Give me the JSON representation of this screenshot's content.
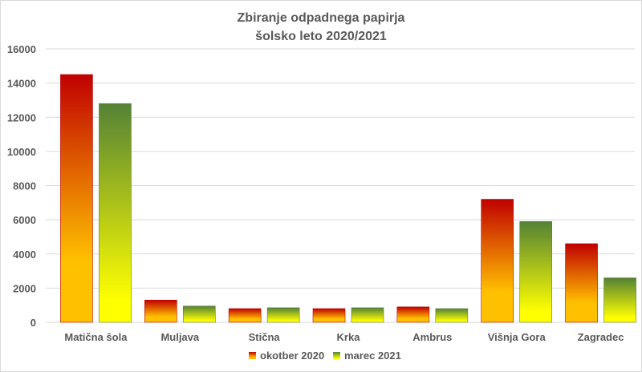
{
  "chart_data": {
    "type": "bar",
    "title": "Zbiranje  odpadnega  papirja",
    "subtitle": "šolsko  leto  2020/2021",
    "xlabel": "",
    "ylabel": "",
    "ylim": [
      0,
      16000
    ],
    "yticks": [
      "0",
      "2000",
      "4000",
      "6000",
      "8000",
      "10000",
      "12000",
      "14000",
      "16000"
    ],
    "grid": true,
    "legend_position": "bottom",
    "categories": [
      "Matična šola",
      "Muljava",
      "Stična",
      "Krka",
      "Ambrus",
      "Višnja Gora",
      "Zagradec"
    ],
    "series": [
      {
        "name": "okotber 2020",
        "values": [
          14500,
          1300,
          800,
          800,
          900,
          7200,
          4600
        ],
        "colors": [
          "#c00000",
          "#ffc000"
        ]
      },
      {
        "name": "marec 2021",
        "values": [
          12800,
          950,
          850,
          850,
          800,
          5900,
          2600
        ],
        "colors": [
          "#548235",
          "#ffff00"
        ]
      }
    ]
  }
}
